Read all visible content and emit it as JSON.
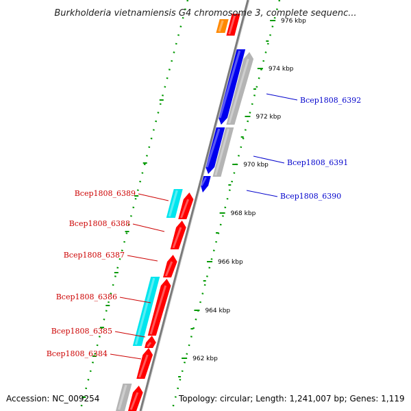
{
  "header": {
    "title": "Burkholderia vietnamiensis G4 chromosome 3, complete sequenc..."
  },
  "footer": {
    "accession": "Accession: NC_009254",
    "summary": "Topology: circular; Length: 1,241,007 bp; Genes: 1,119"
  },
  "colors": {
    "forward_cds": "#ff0000",
    "reverse_cds": "#0000ee",
    "cyan_feature": "#00e5ee",
    "grey_feature": "#b4b4b4",
    "orange_feature": "#ff8800",
    "backbone": "#808080",
    "tick": "#009900",
    "label_forward": "#cc0000",
    "label_reverse": "#0000cc"
  },
  "map": {
    "ticks": [
      {
        "label": "976 kbp",
        "kbp": 976
      },
      {
        "label": "974 kbp",
        "kbp": 974
      },
      {
        "label": "972 kbp",
        "kbp": 972
      },
      {
        "label": "970 kbp",
        "kbp": 970
      },
      {
        "label": "968 kbp",
        "kbp": 968
      },
      {
        "label": "966 kbp",
        "kbp": 966
      },
      {
        "label": "964 kbp",
        "kbp": 964
      },
      {
        "label": "962 kbp",
        "kbp": 962
      }
    ],
    "gene_labels_forward": [
      "Bcep1808_6389",
      "Bcep1808_6388",
      "Bcep1808_6387",
      "Bcep1808_6386",
      "Bcep1808_6385",
      "Bcep1808_6384"
    ],
    "gene_labels_reverse": [
      "Bcep1808_6392",
      "Bcep1808_6391",
      "Bcep1808_6390"
    ]
  }
}
